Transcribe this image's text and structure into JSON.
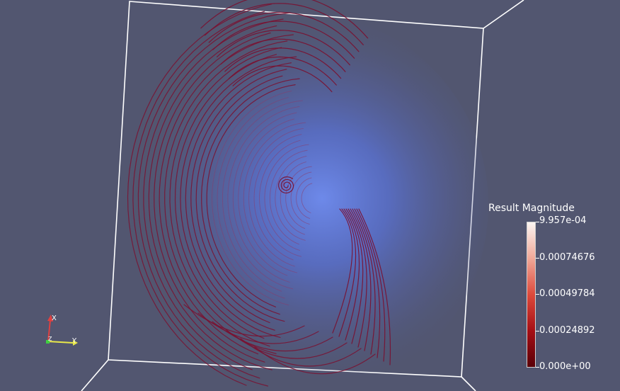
{
  "viewport": {
    "background": "#525670"
  },
  "legend": {
    "title": "Result Magnitude",
    "labels": [
      "9.957e-04",
      "0.00074676",
      "0.00049784",
      "0.00024892",
      "0.000e+00"
    ],
    "colors": [
      "#fbf5f2",
      "#f0a898",
      "#dd4a3c",
      "#a50f15",
      "#5a0008"
    ]
  },
  "axes": {
    "x_label": "X",
    "y_label": "Y",
    "z_label": "Z"
  }
}
